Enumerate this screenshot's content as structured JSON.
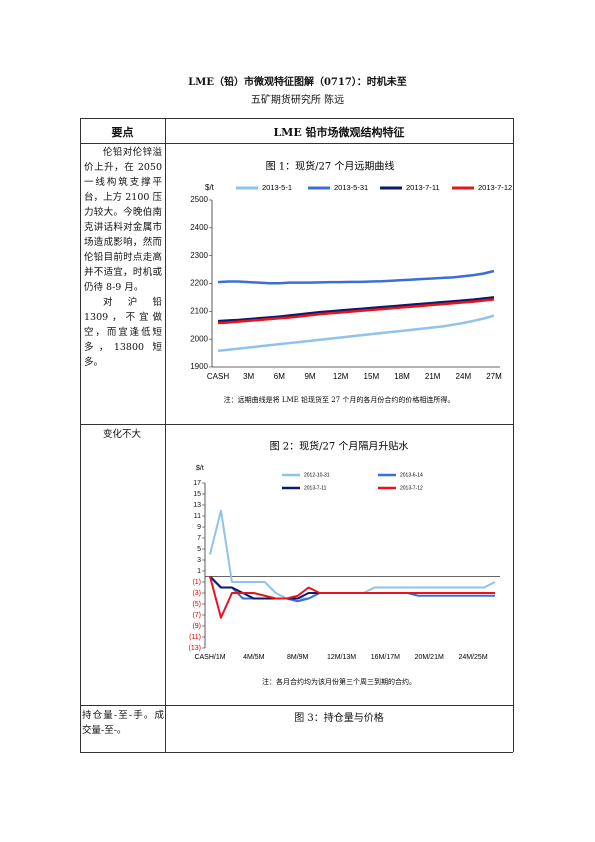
{
  "header": {
    "title": "LME（铅）市微观特征图解（0717）：时机未至",
    "author": "五矿期货研究所    陈远"
  },
  "table": {
    "headers": [
      "要点",
      "LME 铅市场微观结构特征"
    ],
    "rows": [
      {
        "left": [
          "伦铅对伦锌溢价上升，在 2050 一线构筑支撑平台，上方 2100 压力较大。今晚伯南克讲话料对金属市场造成影响，然而伦铅目前时点走高并不适宜，时机或仍待 8-9 月。",
          "对沪铅 1309，不宜做空，而宜逢低短多，13800 短多。"
        ],
        "figure_title": "图 1：现货/27 个月远期曲线",
        "note": "注：远期曲线是将 LME 铅现货至 27 个月的各月份合约的价格相连所得。"
      },
      {
        "left": [
          "变化不大"
        ],
        "figure_title": "图 2：现货/27 个月隔月升贴水",
        "note": "注：各月合约均为该月份第三个周三到期的合约。"
      },
      {
        "left": [
          "持仓量-至-手。成交量-至-。"
        ],
        "figure_title": "图 3：持仓量与价格"
      }
    ]
  },
  "chart_data": [
    {
      "type": "line",
      "y_label": "$/t",
      "categories": [
        "CASH",
        null,
        null,
        "3M",
        null,
        null,
        "6M",
        null,
        null,
        "9M",
        null,
        null,
        "12M",
        null,
        null,
        "15M",
        null,
        null,
        "18M",
        null,
        null,
        "21M",
        null,
        null,
        "24M",
        null,
        null,
        "27M"
      ],
      "series": [
        {
          "name": "2013-5-1",
          "color": "#8fc3ea",
          "values": [
            1958,
            1962,
            1966,
            1970,
            1974,
            1978,
            1982,
            1986,
            1990,
            1994,
            1998,
            2002,
            2006,
            2010,
            2014,
            2018,
            2022,
            2026,
            2030,
            2034,
            2038,
            2042,
            2046,
            2052,
            2058,
            2066,
            2074,
            2085
          ]
        },
        {
          "name": "2013-5-31",
          "color": "#3b6fd8",
          "values": [
            2205,
            2207,
            2207,
            2205,
            2203,
            2201,
            2201,
            2203,
            2203,
            2203,
            2204,
            2205,
            2205,
            2206,
            2206,
            2207,
            2208,
            2210,
            2212,
            2214,
            2216,
            2218,
            2220,
            2222,
            2226,
            2230,
            2236,
            2245
          ]
        },
        {
          "name": "2013-7-11",
          "color": "#0a1a6e",
          "values": [
            2065,
            2067,
            2069,
            2072,
            2075,
            2078,
            2081,
            2085,
            2089,
            2093,
            2097,
            2100,
            2103,
            2106,
            2109,
            2112,
            2115,
            2118,
            2121,
            2124,
            2127,
            2130,
            2133,
            2136,
            2139,
            2142,
            2146,
            2150
          ]
        },
        {
          "name": "2013-7-12",
          "color": "#e8141c",
          "values": [
            2058,
            2060,
            2063,
            2066,
            2069,
            2072,
            2075,
            2078,
            2082,
            2086,
            2090,
            2093,
            2096,
            2099,
            2102,
            2105,
            2108,
            2111,
            2114,
            2117,
            2120,
            2123,
            2126,
            2129,
            2132,
            2135,
            2139,
            2143
          ]
        }
      ],
      "ylim": [
        1900,
        2500
      ],
      "yticks": [
        1900,
        2000,
        2100,
        2200,
        2300,
        2400,
        2500
      ],
      "grid": false
    },
    {
      "type": "line",
      "y_label": "$/t",
      "categories": [
        "CASH/1M",
        null,
        null,
        null,
        "4M/5M",
        null,
        null,
        null,
        "8M/9M",
        null,
        null,
        null,
        "12M/13M",
        null,
        null,
        null,
        "16M/17M",
        null,
        null,
        null,
        "20M/21M",
        null,
        null,
        null,
        "24M/25M",
        null,
        null
      ],
      "series": [
        {
          "name": "2012-10-31",
          "color": "#8fc3ea",
          "values": [
            4,
            12,
            -1,
            -1,
            -1,
            -1,
            -3,
            -4,
            -4,
            -4,
            -3,
            -3,
            -3,
            -3,
            -3,
            -2,
            -2,
            -2,
            -2,
            -2,
            -2,
            -2,
            -2,
            -2,
            -2,
            -2,
            -1
          ]
        },
        {
          "name": "2013-6-14",
          "color": "#3b6fd8",
          "values": [
            0,
            -2,
            -2,
            -4,
            -4,
            -4,
            -4,
            -4,
            -4.5,
            -4,
            -3,
            -3,
            -3,
            -3,
            -3,
            -3,
            -3,
            -3,
            -3,
            -3.5,
            -3.5,
            -3.5,
            -3.5,
            -3.5,
            -3.5,
            -3.5,
            -3.5
          ]
        },
        {
          "name": "2013-7-11",
          "color": "#0a1a6e",
          "values": [
            0,
            -2,
            -2,
            -3,
            -4,
            -4,
            -4,
            -4,
            -4,
            -3,
            -3,
            -3,
            -3,
            -3,
            -3,
            -3,
            -3,
            -3,
            -3,
            -3,
            -3,
            -3,
            -3,
            -3,
            -3,
            -3,
            -3
          ]
        },
        {
          "name": "2013-7-12",
          "color": "#e8141c",
          "values": [
            0,
            -7.5,
            -3,
            -3,
            -3,
            -3.5,
            -4,
            -4,
            -3.5,
            -2,
            -3,
            -3,
            -3,
            -3,
            -3,
            -3,
            -3,
            -3,
            -3,
            -3,
            -3,
            -3,
            -3,
            -3,
            -3,
            -3,
            -3
          ]
        }
      ],
      "ylim": [
        -13,
        17
      ],
      "yticks": [
        17,
        15,
        13,
        11,
        9,
        7,
        5,
        3,
        1,
        {
          "value": -1,
          "label": "(1)"
        },
        {
          "value": -3,
          "label": "(3)"
        },
        {
          "value": -5,
          "label": "(5)"
        },
        {
          "value": -7,
          "label": "(7)"
        },
        {
          "value": -9,
          "label": "(9)"
        },
        {
          "value": -11,
          "label": "(11)"
        },
        {
          "value": -13,
          "label": "(13)"
        }
      ],
      "grid": false
    }
  ]
}
